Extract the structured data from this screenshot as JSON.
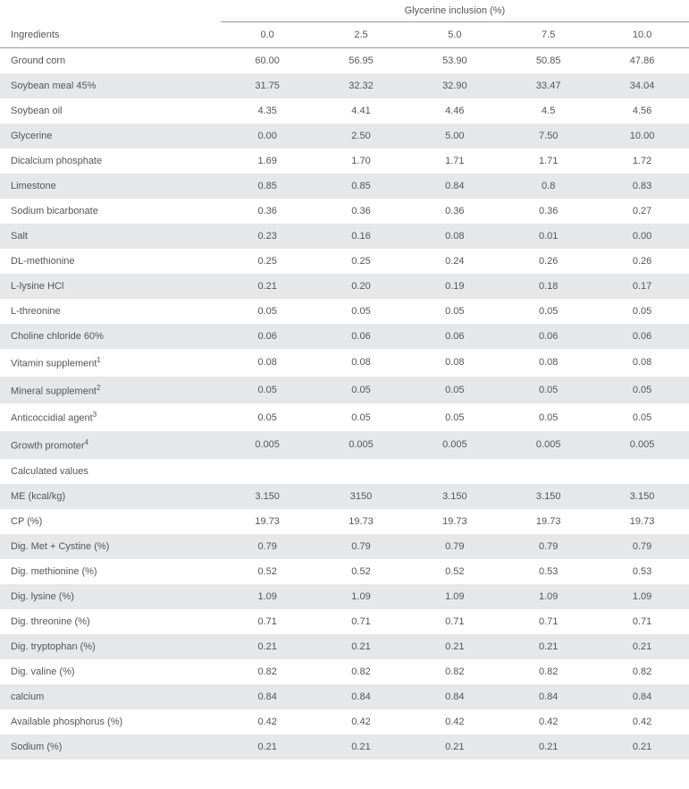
{
  "header": {
    "spanner": "Glycerine inclusion (%)",
    "ingredients_label": "Ingredients",
    "columns": [
      "0.0",
      "2.5",
      "5.0",
      "7.5",
      "10.0"
    ]
  },
  "section_label": "Calculated values",
  "rows": [
    {
      "label": "Ground corn",
      "values": [
        "60.00",
        "56.95",
        "53.90",
        "50.85",
        "47.86"
      ],
      "striped": false
    },
    {
      "label": "Soybean meal 45%",
      "values": [
        "31.75",
        "32.32",
        "32.90",
        "33.47",
        "34.04"
      ],
      "striped": true
    },
    {
      "label": "Soybean oil",
      "values": [
        "4.35",
        "4.41",
        "4.46",
        "4.5",
        "4.56"
      ],
      "striped": false
    },
    {
      "label": "Glycerine",
      "values": [
        "0.00",
        "2.50",
        "5.00",
        "7.50",
        "10.00"
      ],
      "striped": true
    },
    {
      "label": "Dicalcium phosphate",
      "values": [
        "1.69",
        "1.70",
        "1.71",
        "1.71",
        "1.72"
      ],
      "striped": false
    },
    {
      "label": "Limestone",
      "values": [
        "0.85",
        "0.85",
        "0.84",
        "0.8",
        "0.83"
      ],
      "striped": true
    },
    {
      "label": "Sodium bicarbonate",
      "values": [
        "0.36",
        "0.36",
        "0.36",
        "0.36",
        "0.27"
      ],
      "striped": false
    },
    {
      "label": "Salt",
      "values": [
        "0.23",
        "0.16",
        "0.08",
        "0.01",
        "0.00"
      ],
      "striped": true
    },
    {
      "label": "DL-methionine",
      "values": [
        "0.25",
        "0.25",
        "0.24",
        "0.26",
        "0.26"
      ],
      "striped": false
    },
    {
      "label": "L-lysine HCl",
      "values": [
        "0.21",
        "0.20",
        "0.19",
        "0.18",
        "0.17"
      ],
      "striped": true
    },
    {
      "label": "L-threonine",
      "values": [
        "0.05",
        "0.05",
        "0.05",
        "0.05",
        "0.05"
      ],
      "striped": false
    },
    {
      "label": "Choline chloride 60%",
      "values": [
        "0.06",
        "0.06",
        "0.06",
        "0.06",
        "0.06"
      ],
      "striped": true
    },
    {
      "label": "Vitamin supplement",
      "sup": "1",
      "values": [
        "0.08",
        "0.08",
        "0.08",
        "0.08",
        "0.08"
      ],
      "striped": false
    },
    {
      "label": "Mineral supplement",
      "sup": "2",
      "values": [
        "0.05",
        "0.05",
        "0.05",
        "0.05",
        "0.05"
      ],
      "striped": true
    },
    {
      "label": "Anticoccidial agent",
      "sup": "3",
      "values": [
        "0.05",
        "0.05",
        "0.05",
        "0.05",
        "0.05"
      ],
      "striped": false
    },
    {
      "label": "Growth promoter",
      "sup": "4",
      "values": [
        "0.005",
        "0.005",
        "0.005",
        "0.005",
        "0.005"
      ],
      "striped": true
    }
  ],
  "calc_rows": [
    {
      "label": "ME (kcal/kg)",
      "values": [
        "3.150",
        "3150",
        "3.150",
        "3.150",
        "3.150"
      ],
      "striped": true
    },
    {
      "label": "CP (%)",
      "values": [
        "19.73",
        "19.73",
        "19.73",
        "19.73",
        "19.73"
      ],
      "striped": false
    },
    {
      "label": "Dig. Met + Cystine (%)",
      "values": [
        "0.79",
        "0.79",
        "0.79",
        "0.79",
        "0.79"
      ],
      "striped": true
    },
    {
      "label": "Dig. methionine (%)",
      "values": [
        "0.52",
        "0.52",
        "0.52",
        "0.53",
        "0.53"
      ],
      "striped": false
    },
    {
      "label": "Dig. lysine (%)",
      "values": [
        "1.09",
        "1.09",
        "1.09",
        "1.09",
        "1.09"
      ],
      "striped": true
    },
    {
      "label": "Dig. threonine (%)",
      "values": [
        "0.71",
        "0.71",
        "0.71",
        "0.71",
        "0.71"
      ],
      "striped": false
    },
    {
      "label": "Dig. tryptophan (%)",
      "values": [
        "0.21",
        "0.21",
        "0.21",
        "0.21",
        "0.21"
      ],
      "striped": true
    },
    {
      "label": "Dig. valine (%)",
      "values": [
        "0.82",
        "0.82",
        "0.82",
        "0.82",
        "0.82"
      ],
      "striped": false
    },
    {
      "label": "calcium",
      "values": [
        "0.84",
        "0.84",
        "0.84",
        "0.84",
        "0.84"
      ],
      "striped": true
    },
    {
      "label": "Available phosphorus (%)",
      "values": [
        "0.42",
        "0.42",
        "0.42",
        "0.42",
        "0.42"
      ],
      "striped": false
    },
    {
      "label": "Sodium (%)",
      "values": [
        "0.21",
        "0.21",
        "0.21",
        "0.21",
        "0.21"
      ],
      "striped": true
    }
  ],
  "colors": {
    "stripe": "#e6e7e8",
    "text": "#555555",
    "border": "#999999",
    "background": "#ffffff"
  },
  "typography": {
    "font_family": "Arial, Helvetica, sans-serif",
    "font_size_pt": 8,
    "font_weight": "normal"
  }
}
